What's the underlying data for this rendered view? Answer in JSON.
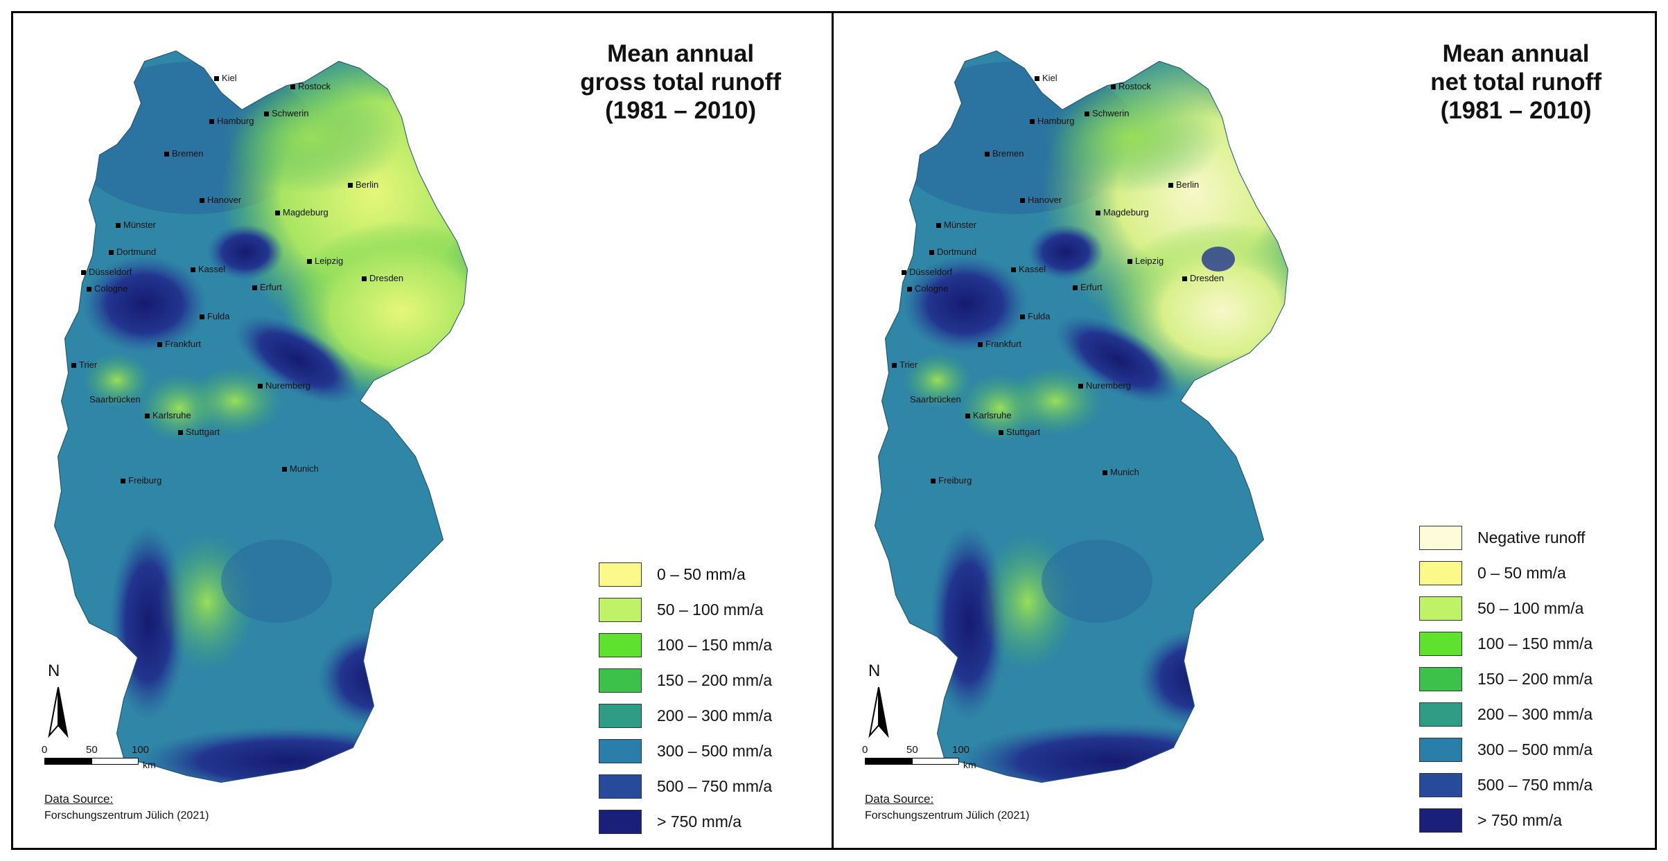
{
  "panels": [
    {
      "title_lines": [
        "Mean annual",
        "gross total runoff",
        "(1981 – 2010)"
      ],
      "legend": [
        {
          "label": "0 – 50 mm/a",
          "color": "#fbf98a"
        },
        {
          "label": "50 – 100 mm/a",
          "color": "#bff266"
        },
        {
          "label": "100 – 150 mm/a",
          "color": "#5fe22e"
        },
        {
          "label": "150 – 200 mm/a",
          "color": "#3cc24a"
        },
        {
          "label": "200 – 300 mm/a",
          "color": "#2f9d86"
        },
        {
          "label": "300 – 500 mm/a",
          "color": "#2a7eaa"
        },
        {
          "label": "500 – 750 mm/a",
          "color": "#274a9b"
        },
        {
          "label": "> 750 mm/a",
          "color": "#1a1f7a"
        }
      ]
    },
    {
      "title_lines": [
        "Mean annual",
        "net total runoff",
        "(1981 – 2010)"
      ],
      "legend": [
        {
          "label": "Negative runoff",
          "color": "#fdfbd8"
        },
        {
          "label": "0 – 50 mm/a",
          "color": "#fbf98a"
        },
        {
          "label": "50 – 100 mm/a",
          "color": "#bff266"
        },
        {
          "label": "100 – 150 mm/a",
          "color": "#5fe22e"
        },
        {
          "label": "150 – 200 mm/a",
          "color": "#3cc24a"
        },
        {
          "label": "200 – 300 mm/a",
          "color": "#2f9d86"
        },
        {
          "label": "300 – 500 mm/a",
          "color": "#2a7eaa"
        },
        {
          "label": "500 – 750 mm/a",
          "color": "#274a9b"
        },
        {
          "label": "> 750 mm/a",
          "color": "#1a1f7a"
        }
      ]
    }
  ],
  "cities": [
    "Kiel",
    "Rostock",
    "Hamburg",
    "Schwerin",
    "Bremen",
    "Berlin",
    "Hanover",
    "Magdeburg",
    "Münster",
    "Dortmund",
    "Kassel",
    "Leipzig",
    "Düsseldorf",
    "Dresden",
    "Cologne",
    "Erfurt",
    "Fulda",
    "Frankfurt",
    "Trier",
    "Nuremberg",
    "Saarbrücken",
    "Karlsruhe",
    "Stuttgart",
    "Munich",
    "Freiburg"
  ],
  "north_label": "N",
  "scale": {
    "ticks": [
      "0",
      "50",
      "100"
    ],
    "unit": "km"
  },
  "source": {
    "heading": "Data Source:",
    "text": "Forschungszentrum Jülich (2021)"
  }
}
